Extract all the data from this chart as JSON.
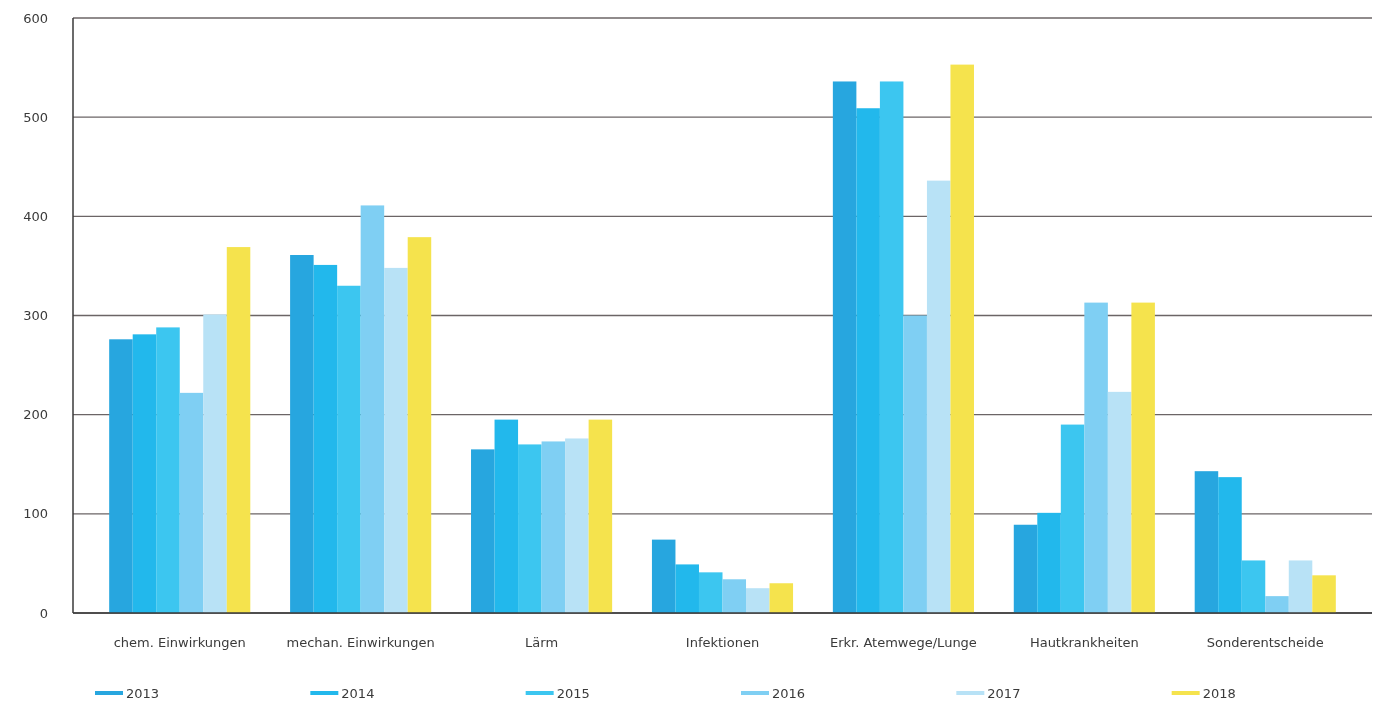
{
  "chart_data": {
    "type": "bar",
    "categories": [
      "chem. Einwirkungen",
      "mechan. Einwirkungen",
      "Lärm",
      "Infektionen",
      "Erkr. Atemwege/Lunge",
      "Hautkrankheiten",
      "Sonderentscheide"
    ],
    "series": [
      {
        "name": "2013",
        "color": "#27a6df",
        "values": [
          276,
          361,
          165,
          74,
          536,
          89,
          143
        ]
      },
      {
        "name": "2014",
        "color": "#22b8ec",
        "values": [
          281,
          351,
          195,
          49,
          509,
          101,
          137
        ]
      },
      {
        "name": "2015",
        "color": "#3cc6f0",
        "values": [
          288,
          330,
          170,
          41,
          536,
          190,
          53
        ]
      },
      {
        "name": "2016",
        "color": "#7fcff3",
        "values": [
          222,
          411,
          173,
          34,
          300,
          313,
          17
        ]
      },
      {
        "name": "2017",
        "color": "#b8e2f6",
        "values": [
          301,
          348,
          176,
          25,
          436,
          223,
          53
        ]
      },
      {
        "name": "2018",
        "color": "#f5e34d",
        "values": [
          369,
          379,
          195,
          30,
          553,
          313,
          38
        ]
      }
    ],
    "ylim": [
      0,
      600
    ],
    "yticks": [
      0,
      100,
      200,
      300,
      400,
      500,
      600
    ],
    "grid": "y",
    "legend": "bottom"
  }
}
